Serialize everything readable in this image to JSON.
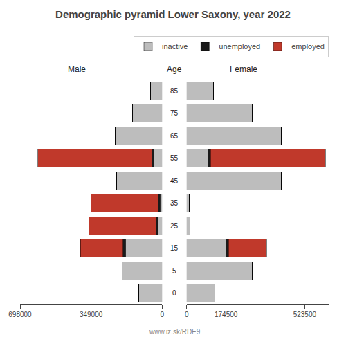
{
  "chart_data": {
    "type": "bar",
    "orientation": "horizontal",
    "stacked": true,
    "title": "Demographic pyramid Lower Saxony, year 2022",
    "ylabel": "Age",
    "annotations": [
      "www.iz.sk/RDE9"
    ],
    "legend": "upper right",
    "grid": false,
    "categories": [
      0,
      5,
      15,
      25,
      35,
      45,
      55,
      65,
      75,
      85
    ],
    "panels": [
      {
        "title": "Male",
        "xlim": [
          698000,
          0
        ],
        "xticks": [
          698000,
          349000,
          0
        ],
        "series": [
          {
            "name": "inactive",
            "color": "#BDBDBD",
            "values": [
              115000,
              195000,
              180000,
              20000,
              10000,
              225000,
              38000,
              230000,
              145000,
              55000
            ]
          },
          {
            "name": "unemployed",
            "color": "#1A1A1A",
            "values": [
              0,
              0,
              12000,
              10000,
              8000,
              0,
              12000,
              0,
              0,
              0
            ]
          },
          {
            "name": "employed",
            "color": "#C0392B",
            "values": [
              0,
              0,
              210000,
              330000,
              330000,
              0,
              560000,
              0,
              0,
              0
            ]
          }
        ]
      },
      {
        "title": "Female",
        "xlim": [
          0,
          630000
        ],
        "xticks": [
          0,
          174500,
          523500
        ],
        "series": [
          {
            "name": "inactive",
            "color": "#BDBDBD",
            "values": [
              125000,
              290000,
              175000,
              15000,
              10000,
              420000,
              95000,
              420000,
              290000,
              120000
            ]
          },
          {
            "name": "unemployed",
            "color": "#1A1A1A",
            "values": [
              0,
              0,
              10000,
              0,
              0,
              0,
              10000,
              0,
              0,
              0
            ]
          },
          {
            "name": "employed",
            "color": "#C0392B",
            "values": [
              0,
              0,
              170000,
              0,
              0,
              0,
              510000,
              0,
              0,
              0
            ]
          }
        ]
      }
    ]
  }
}
